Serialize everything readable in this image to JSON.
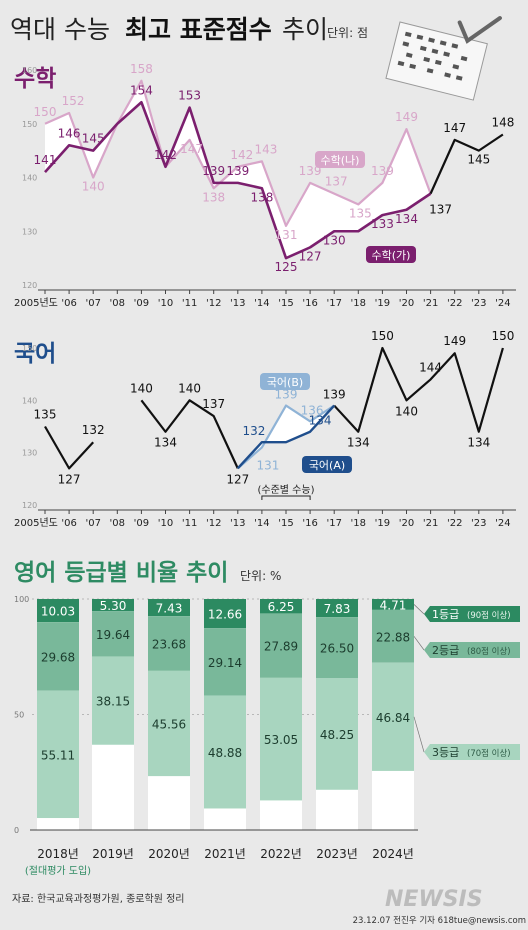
{
  "header": {
    "title_part1": "역대 수능",
    "title_bold": "최고 표준점수",
    "title_part3": "추이",
    "unit": "단위: 점"
  },
  "colors": {
    "math_ga": "#7b1f6e",
    "math_na": "#d8a6c9",
    "kor_a": "#1f4e8c",
    "kor_b": "#8fb3d6",
    "black": "#111111",
    "green": "#2e8b63",
    "green1": "#2c8a61",
    "green2": "#79b89a",
    "green3": "#a8d5bf"
  },
  "chart_data": [
    {
      "type": "line",
      "title": "수학",
      "ylim": [
        120,
        160
      ],
      "yticks": [
        "160",
        "150",
        "140",
        "130",
        "120"
      ],
      "x": [
        "2005년도",
        "'06",
        "'07",
        "'08",
        "'09",
        "'10",
        "'11",
        "'12",
        "'13",
        "'14",
        "'15",
        "'16",
        "'17",
        "'18",
        "'19",
        "'20",
        "'21",
        "'22",
        "'23",
        "'24"
      ],
      "series": [
        {
          "name": "수학(가)",
          "values": [
            141,
            146,
            145,
            150,
            154,
            142,
            153,
            139,
            139,
            138,
            125,
            127,
            130,
            130,
            133,
            134,
            137,
            null,
            null,
            null
          ]
        },
        {
          "name": "수학(나)",
          "values": [
            150,
            152,
            140,
            150,
            158,
            142,
            147,
            138,
            142,
            143,
            131,
            139,
            137,
            135,
            139,
            149,
            137,
            null,
            null,
            null
          ]
        },
        {
          "name": "",
          "values": [
            null,
            null,
            null,
            null,
            null,
            null,
            null,
            null,
            null,
            null,
            null,
            null,
            null,
            null,
            null,
            null,
            137,
            147,
            145,
            148
          ]
        }
      ],
      "labels": {
        "ga": [
          "141",
          "146",
          "145",
          "",
          "154",
          "142",
          "153",
          "139",
          "139",
          "138",
          "125",
          "127",
          "130",
          "",
          "133",
          "134",
          "",
          "",
          "",
          ""
        ],
        "na": [
          "150",
          "152",
          "140",
          "",
          "158",
          "",
          "147",
          "138",
          "142",
          "143",
          "131",
          "139",
          "137",
          "135",
          "139",
          "149",
          "",
          "",
          "",
          ""
        ],
        "combined": [
          "",
          "",
          "",
          "",
          "",
          "",
          "",
          "",
          "",
          "",
          "",
          "",
          "",
          "",
          "",
          "",
          "137",
          "147",
          "145",
          "148"
        ]
      }
    },
    {
      "type": "line",
      "title": "국어",
      "ylim": [
        120,
        150
      ],
      "yticks": [
        "150",
        "140",
        "130",
        "120"
      ],
      "x": [
        "2005년도",
        "'06",
        "'07",
        "'08",
        "'09",
        "'10",
        "'11",
        "'12",
        "'13",
        "'14",
        "'15",
        "'16",
        "'17",
        "'18",
        "'19",
        "'20",
        "'21",
        "'22",
        "'23",
        "'24"
      ],
      "series": [
        {
          "name": "",
          "values": [
            135,
            127,
            132,
            null,
            140,
            134,
            140,
            137,
            127,
            null,
            null,
            null,
            139,
            134,
            150,
            140,
            144,
            149,
            134,
            150
          ]
        },
        {
          "name": "국어(A)",
          "values": [
            null,
            null,
            null,
            null,
            null,
            null,
            null,
            null,
            127,
            132,
            132,
            134,
            139,
            null,
            null,
            null,
            null,
            null,
            null,
            null
          ]
        },
        {
          "name": "국어(B)",
          "values": [
            null,
            null,
            null,
            null,
            null,
            null,
            null,
            null,
            127,
            131,
            139,
            136,
            139,
            null,
            null,
            null,
            null,
            null,
            null,
            null
          ]
        }
      ],
      "labels": {
        "main": [
          "135",
          "127",
          "132",
          "",
          "140",
          "134",
          "140",
          "137",
          "127",
          "",
          "",
          "",
          "139",
          "134",
          "150",
          "140",
          "144",
          "149",
          "134",
          "150"
        ],
        "a": [
          "",
          "",
          "",
          "",
          "",
          "",
          "",
          "",
          "",
          "132",
          "",
          "134",
          "",
          "",
          "",
          "",
          "",
          "",
          "",
          ""
        ],
        "b": [
          "",
          "",
          "",
          "",
          "",
          "",
          "",
          "",
          "",
          "131",
          "139",
          "136",
          "",
          "",
          "",
          "",
          "",
          "",
          "",
          ""
        ]
      },
      "bracket": "(수준별 수능)"
    },
    {
      "type": "bar",
      "title": "영어 등급별 비율 추이",
      "unit": "단위: %",
      "ylim": [
        0,
        100
      ],
      "yticks": [
        "100",
        "50",
        "0"
      ],
      "categories": [
        "2018년",
        "2019년",
        "2020년",
        "2021년",
        "2022년",
        "2023년",
        "2024년"
      ],
      "series": [
        {
          "name": "1등급",
          "values": [
            10.03,
            5.3,
            7.43,
            12.66,
            6.25,
            7.83,
            4.71
          ],
          "labels": [
            "10.03",
            "5.30",
            "7.43",
            "12.66",
            "6.25",
            "7.83",
            "4.71"
          ]
        },
        {
          "name": "2등급",
          "values": [
            29.68,
            19.64,
            23.68,
            29.14,
            27.89,
            26.5,
            22.88
          ],
          "labels": [
            "29.68",
            "19.64",
            "23.68",
            "29.14",
            "27.89",
            "26.50",
            "22.88"
          ]
        },
        {
          "name": "3등급",
          "values": [
            55.11,
            38.15,
            45.56,
            48.88,
            53.05,
            48.25,
            46.84
          ],
          "labels": [
            "55.11",
            "38.15",
            "45.56",
            "48.88",
            "53.05",
            "48.25",
            "46.84"
          ]
        }
      ],
      "legend": [
        {
          "name": "1등급",
          "note": "(90점 이상)"
        },
        {
          "name": "2등급",
          "note": "(80점 이상)"
        },
        {
          "name": "3등급",
          "note": "(70점 이상)"
        }
      ],
      "note_2018": "(절대평가 도입)"
    }
  ],
  "footer": {
    "source": "자료: 한국교육과정평가원, 종로학원 정리",
    "logo": "NEWSIS",
    "credit": "23.12.07 전진우 기자 618tue@newsis.com"
  }
}
